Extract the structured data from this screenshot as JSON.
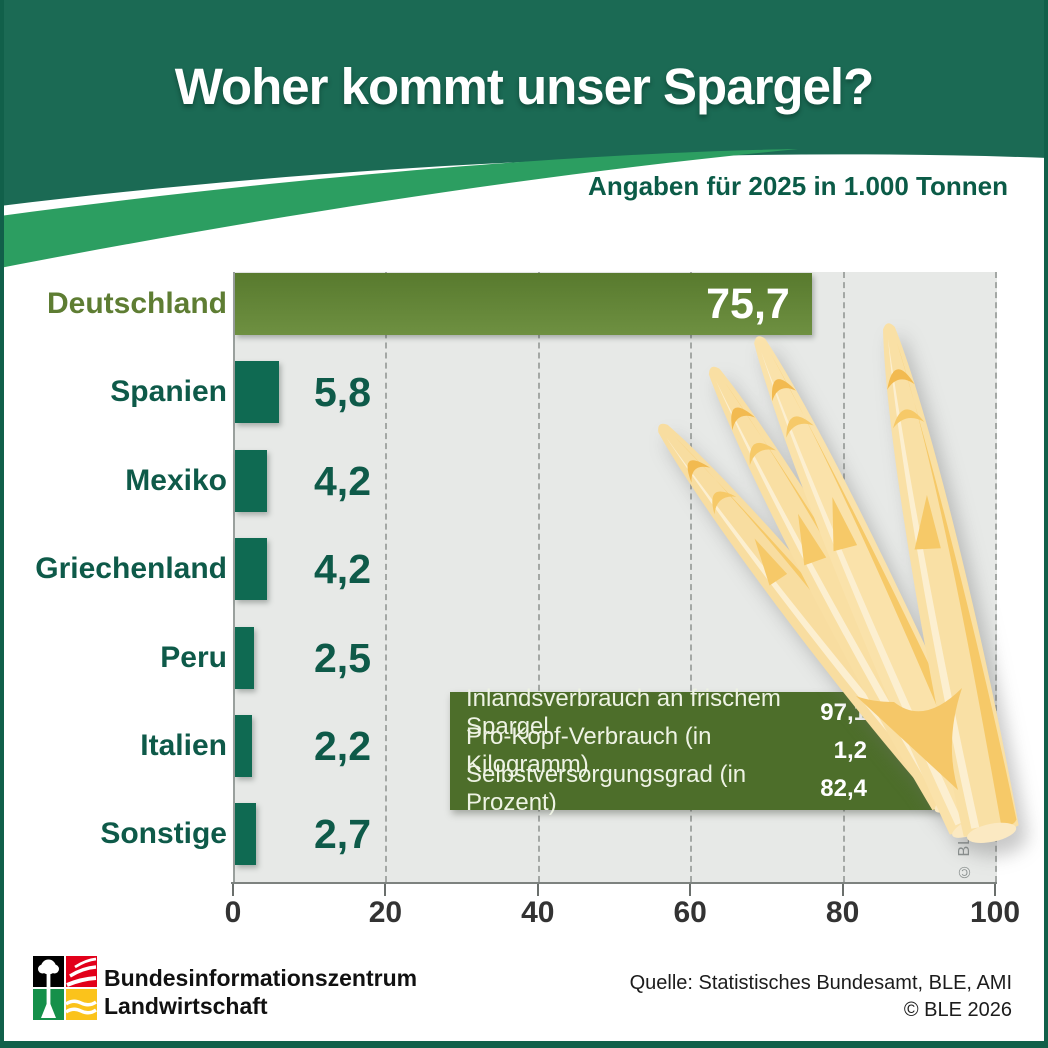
{
  "header": {
    "title": "Woher kommt unser Spargel?",
    "subtitle": "Angaben für 2025 in 1.000 Tonnen",
    "bg_color": "#1b6a54",
    "swoosh_color": "#2c9e61",
    "title_color": "#ffffff",
    "subtitle_color": "#0b5b47"
  },
  "chart_data": {
    "type": "bar",
    "orientation": "horizontal",
    "title": "Woher kommt unser Spargel?",
    "subtitle": "Angaben für 2025 in 1.000 Tonnen",
    "unit": "1.000 Tonnen",
    "year": "2025",
    "categories": [
      "Deutschland",
      "Spanien",
      "Mexiko",
      "Griechenland",
      "Peru",
      "Italien",
      "Sonstige"
    ],
    "values": [
      75.7,
      5.8,
      4.2,
      4.2,
      2.5,
      2.2,
      2.7
    ],
    "value_labels": [
      "75,7",
      "5,8",
      "4,2",
      "4,2",
      "2,5",
      "2,2",
      "2,7"
    ],
    "xlim": [
      0,
      100
    ],
    "x_ticks": [
      0,
      20,
      40,
      60,
      80,
      100
    ],
    "grid": "dashed-vertical",
    "legend": "none",
    "highlight_category": "Deutschland",
    "bar_color_highlight": "#64823a",
    "bar_color_default": "#0f6a52",
    "plot_bg": "#e7e9e7"
  },
  "info_box": {
    "bg_color": "#4d6e2a",
    "rows": [
      {
        "label": "Inlandsverbrauch an frischem Spargel",
        "value": "97,1"
      },
      {
        "label": "Pro-Kopf-Verbrauch (in Kilogramm)",
        "value": "1,2"
      },
      {
        "label": "Selbstversorgungsgrad (in Prozent)",
        "value": "82,4"
      }
    ]
  },
  "watermark": "© BLE",
  "footer": {
    "org_line1": "Bundesinformationszentrum",
    "org_line2": "Landwirtschaft",
    "source": "Quelle: Statistisches Bundesamt, BLE, AMI",
    "copyright": "© BLE 2026",
    "logo_colors": {
      "black": "#000000",
      "red": "#e2001a",
      "green": "#15904a",
      "yellow": "#fbc31b"
    }
  }
}
